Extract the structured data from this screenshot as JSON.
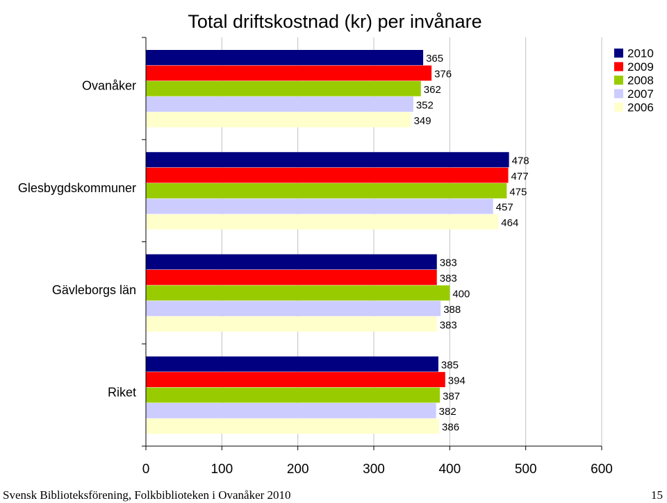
{
  "chart_data": {
    "type": "bar",
    "orientation": "horizontal",
    "title": "Total driftskostnad (kr) per invånare",
    "categories": [
      "Ovanåker",
      "Glesbygdskommuner",
      "Gävleborgs län",
      "Riket"
    ],
    "series": [
      {
        "name": "2010",
        "color": "#000080",
        "values": [
          365,
          478,
          383,
          385
        ]
      },
      {
        "name": "2009",
        "color": "#ff0000",
        "values": [
          376,
          477,
          383,
          394
        ]
      },
      {
        "name": "2008",
        "color": "#99cc00",
        "values": [
          362,
          475,
          400,
          387
        ]
      },
      {
        "name": "2007",
        "color": "#ccccff",
        "values": [
          352,
          457,
          388,
          382
        ]
      },
      {
        "name": "2006",
        "color": "#ffffcc",
        "values": [
          349,
          464,
          383,
          386
        ]
      }
    ],
    "xlim": [
      0,
      600
    ],
    "xticks": [
      "0",
      "100",
      "200",
      "300",
      "400",
      "500",
      "600"
    ],
    "grid": true,
    "legend_position": "top-right"
  },
  "footer": {
    "left": "Svensk Biblioteksförening, Folkbiblioteken i Ovanåker 2010",
    "right": "15"
  }
}
